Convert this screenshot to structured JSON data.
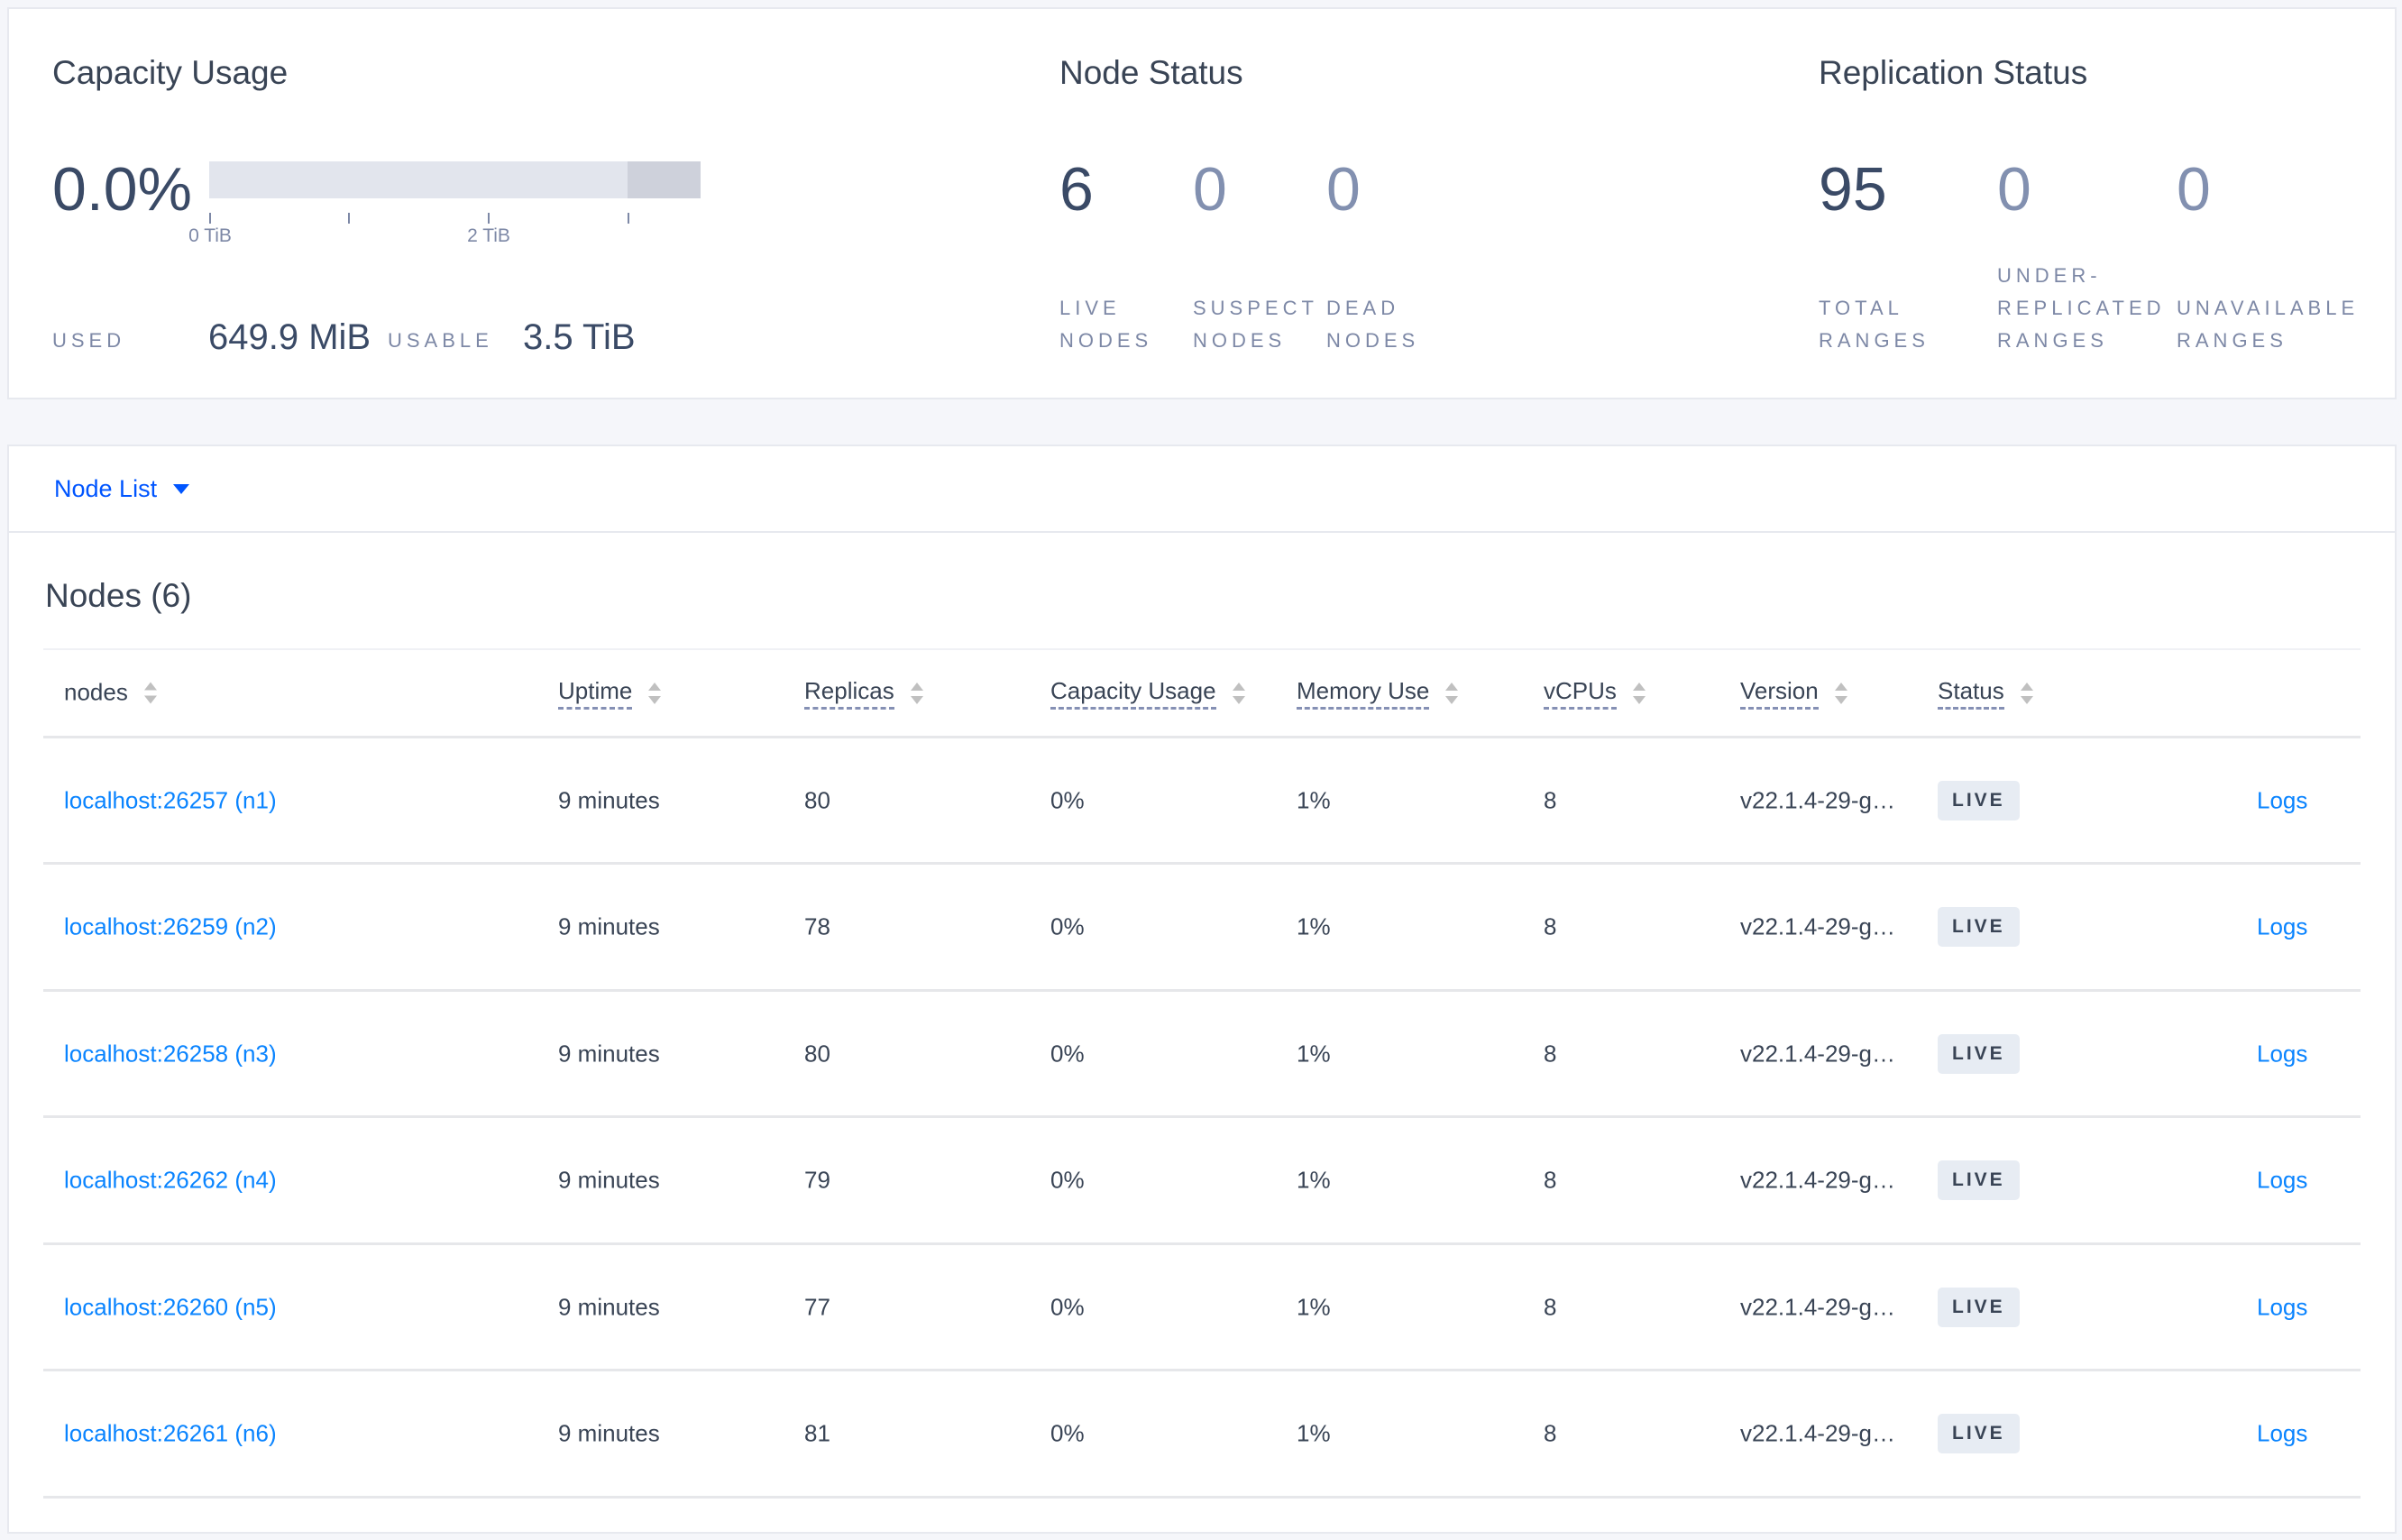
{
  "capacity": {
    "title": "Capacity Usage",
    "percent": "0.0%",
    "used_fraction": 0.0,
    "bar_ticks": [
      "0 TiB",
      "2 TiB"
    ],
    "used_label": "USED",
    "used_value": "649.9 MiB",
    "usable_label": "USABLE",
    "usable_value": "3.5 TiB"
  },
  "node_status": {
    "title": "Node Status",
    "stats": [
      {
        "value": "6",
        "label1": "LIVE",
        "label2": "NODES"
      },
      {
        "value": "0",
        "label1": "SUSPECT",
        "label2": "NODES"
      },
      {
        "value": "0",
        "label1": "DEAD",
        "label2": "NODES"
      }
    ]
  },
  "replication": {
    "title": "Replication Status",
    "stats": [
      {
        "value": "95",
        "label0": "",
        "label1": "TOTAL",
        "label2": "RANGES"
      },
      {
        "value": "0",
        "label0": "UNDER-",
        "label1": "REPLICATED",
        "label2": "RANGES"
      },
      {
        "value": "0",
        "label0": "",
        "label1": "UNAVAILABLE",
        "label2": "RANGES"
      }
    ]
  },
  "view_selector": {
    "label": "Node List"
  },
  "nodes_title": "Nodes (6)",
  "table": {
    "columns": [
      "nodes",
      "Uptime",
      "Replicas",
      "Capacity Usage",
      "Memory Use",
      "vCPUs",
      "Version",
      "Status"
    ],
    "rows": [
      {
        "node": "localhost:26257 (n1)",
        "uptime": "9 minutes",
        "replicas": "80",
        "capacity": "0%",
        "memory": "1%",
        "vcpus": "8",
        "version": "v22.1.4-29-g…",
        "status": "LIVE",
        "logs": "Logs"
      },
      {
        "node": "localhost:26259 (n2)",
        "uptime": "9 minutes",
        "replicas": "78",
        "capacity": "0%",
        "memory": "1%",
        "vcpus": "8",
        "version": "v22.1.4-29-g…",
        "status": "LIVE",
        "logs": "Logs"
      },
      {
        "node": "localhost:26258 (n3)",
        "uptime": "9 minutes",
        "replicas": "80",
        "capacity": "0%",
        "memory": "1%",
        "vcpus": "8",
        "version": "v22.1.4-29-g…",
        "status": "LIVE",
        "logs": "Logs"
      },
      {
        "node": "localhost:26262 (n4)",
        "uptime": "9 minutes",
        "replicas": "79",
        "capacity": "0%",
        "memory": "1%",
        "vcpus": "8",
        "version": "v22.1.4-29-g…",
        "status": "LIVE",
        "logs": "Logs"
      },
      {
        "node": "localhost:26260 (n5)",
        "uptime": "9 minutes",
        "replicas": "77",
        "capacity": "0%",
        "memory": "1%",
        "vcpus": "8",
        "version": "v22.1.4-29-g…",
        "status": "LIVE",
        "logs": "Logs"
      },
      {
        "node": "localhost:26261 (n6)",
        "uptime": "9 minutes",
        "replicas": "81",
        "capacity": "0%",
        "memory": "1%",
        "vcpus": "8",
        "version": "v22.1.4-29-g…",
        "status": "LIVE",
        "logs": "Logs"
      }
    ]
  },
  "colors": {
    "link": "#0a84ff",
    "text": "#394455",
    "badge_bg": "#e7ecf3"
  }
}
